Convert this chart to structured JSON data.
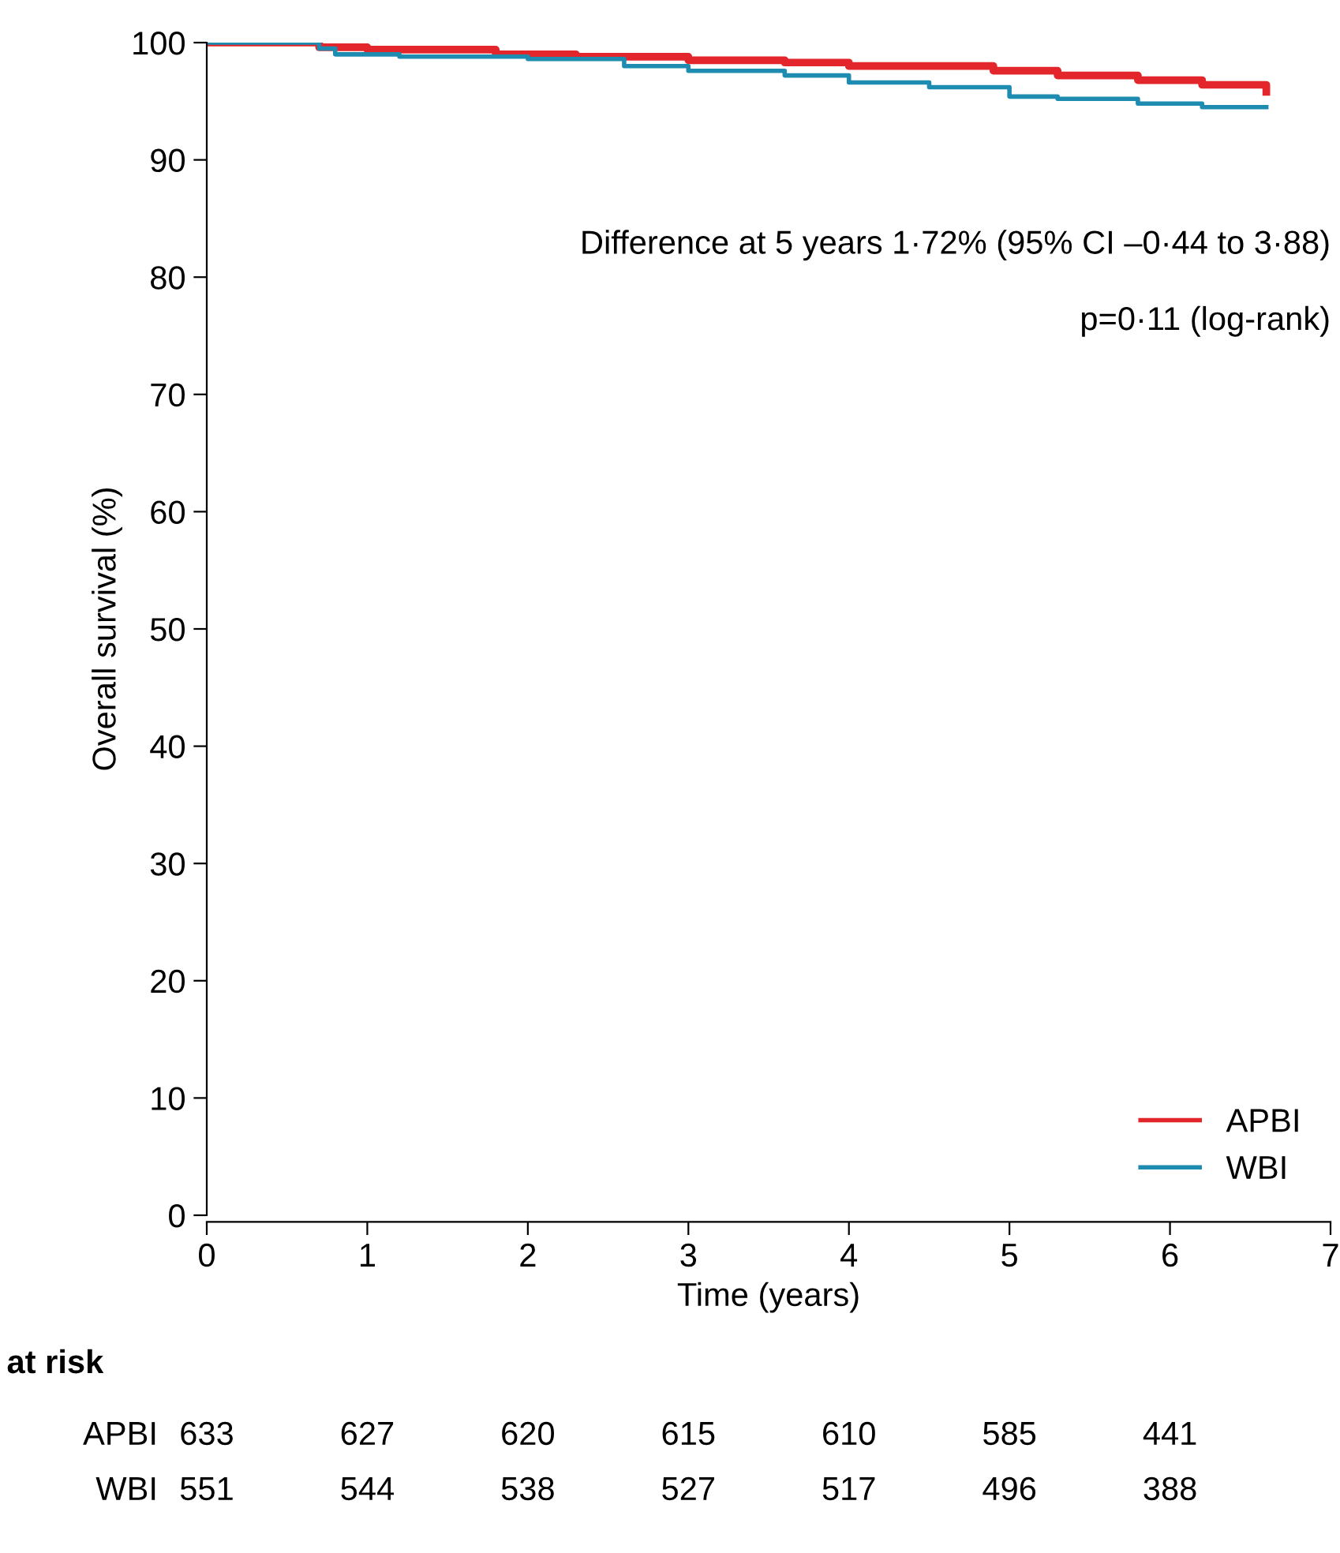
{
  "chart_data": {
    "type": "step",
    "xlabel": "Time (years)",
    "ylabel": "Overall survival (%)",
    "xlim": [
      0,
      7
    ],
    "xticks": [
      0,
      1,
      2,
      3,
      4,
      5,
      6,
      7
    ],
    "ylim": [
      0,
      100
    ],
    "yticks": [
      0,
      10,
      20,
      30,
      40,
      50,
      60,
      70,
      80,
      90,
      100
    ],
    "grid": false,
    "legend": "bottom right",
    "marker": "none",
    "line_style": "solid",
    "series": [
      {
        "name": "APBI",
        "color": "#e3262b",
        "x": [
          0,
          0.7,
          1.0,
          1.8,
          2.3,
          3.0,
          3.6,
          4.0,
          4.9,
          5.3,
          5.8,
          6.2,
          6.6
        ],
        "values": [
          100,
          99.6,
          99.4,
          99.0,
          98.8,
          98.5,
          98.3,
          98.0,
          97.6,
          97.2,
          96.8,
          96.4,
          95.8
        ]
      },
      {
        "name": "WBI",
        "color": "#1e8bb0",
        "x": [
          0,
          0.7,
          0.8,
          1.2,
          2.0,
          2.6,
          3.0,
          3.6,
          4.0,
          4.5,
          5.0,
          5.3,
          5.8,
          6.2,
          6.6
        ],
        "values": [
          100,
          99.5,
          99.0,
          98.8,
          98.6,
          98.0,
          97.6,
          97.2,
          96.6,
          96.2,
          95.4,
          95.2,
          94.8,
          94.5,
          94.5
        ]
      }
    ],
    "annotations": [
      "Difference at 5 years 1·72% (95% CI –0·44 to 3·88)",
      "p=0·11 (log-rank)",
      "at risk",
      "APBI",
      "633",
      "627",
      "620",
      "615",
      "610",
      "585",
      "441",
      "WBI",
      "551",
      "544",
      "538",
      "527",
      "517",
      "496",
      "388"
    ]
  }
}
